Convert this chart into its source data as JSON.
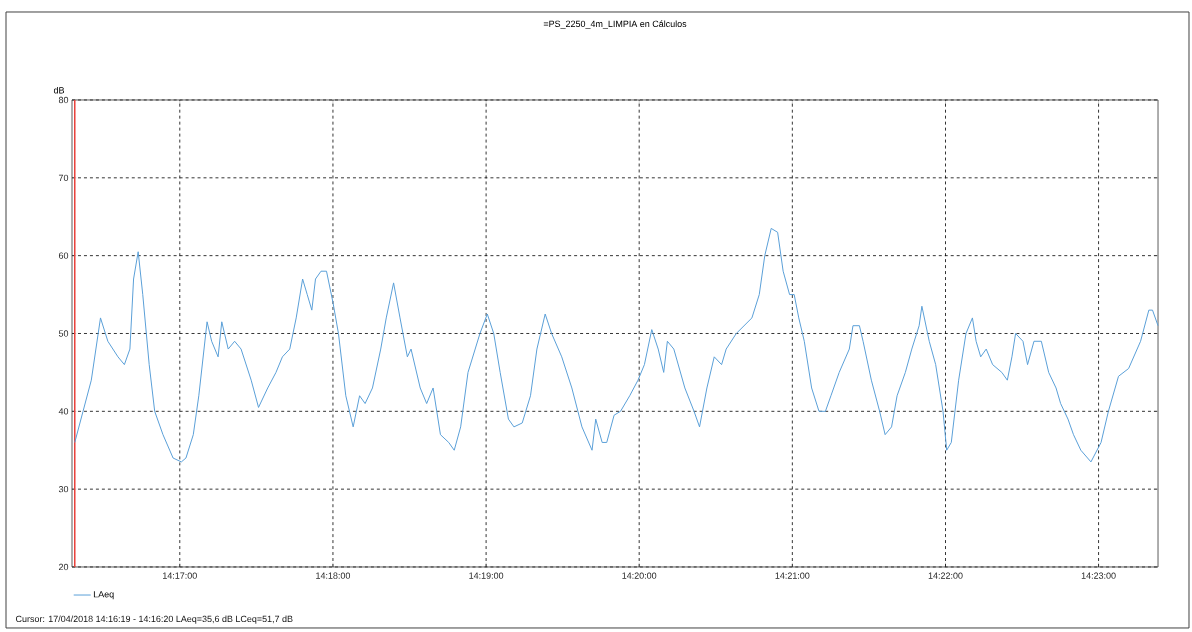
{
  "chart_data": {
    "type": "line",
    "title": "=PS_2250_4m_LIMPIA en Cálculos",
    "ylabel": "dB",
    "xlim": [
      14.2716,
      14.3898
    ],
    "ylim": [
      20,
      80
    ],
    "xticks": [
      {
        "value": 14.28333,
        "label": "14:17:00"
      },
      {
        "value": 14.3,
        "label": "14:18:00"
      },
      {
        "value": 14.31667,
        "label": "14:19:00"
      },
      {
        "value": 14.33333,
        "label": "14:20:00"
      },
      {
        "value": 14.35,
        "label": "14:21:00"
      },
      {
        "value": 14.36667,
        "label": "14:22:00"
      },
      {
        "value": 14.38333,
        "label": "14:23:00"
      }
    ],
    "yticks": [
      20,
      30,
      40,
      50,
      60,
      70,
      80
    ],
    "grid": true,
    "legend": "bottom left",
    "marker": "none",
    "line_style": "solid",
    "ref_lines": [
      {
        "axis": "x",
        "value": 14.2719,
        "color": "#e8403a"
      }
    ],
    "annotations": [
      "Cursor: 17/04/2018 14:16:19 - 14:16:20  LAeq=35,6 dB  LCeq=51,7 dB"
    ],
    "series": [
      {
        "name": "LAeq",
        "color": "#5aa0d8",
        "x": [
          14.2719,
          14.2728,
          14.2737,
          14.2747,
          14.2755,
          14.2766,
          14.2773,
          14.2779,
          14.2783,
          14.2788,
          14.2793,
          14.28,
          14.2806,
          14.2815,
          14.2826,
          14.2835,
          14.284,
          14.2848,
          14.2854,
          14.2863,
          14.2868,
          14.2875,
          14.2879,
          14.2886,
          14.2893,
          14.29,
          14.2911,
          14.2919,
          14.2929,
          14.2938,
          14.2945,
          14.2953,
          14.296,
          14.2967,
          14.2972,
          14.2977,
          14.2981,
          14.2987,
          14.2993,
          14.3,
          14.3006,
          14.3014,
          14.3022,
          14.3029,
          14.3035,
          14.3043,
          14.3052,
          14.3058,
          14.3066,
          14.3073,
          14.3081,
          14.3085,
          14.3095,
          14.3102,
          14.3109,
          14.3117,
          14.3126,
          14.3132,
          14.3139,
          14.3147,
          14.316,
          14.3168,
          14.3175,
          14.3182,
          14.3191,
          14.3197,
          14.3206,
          14.3215,
          14.3222,
          14.3231,
          14.3238,
          14.3249,
          14.326,
          14.3271,
          14.3282,
          14.3286,
          14.3293,
          14.3298,
          14.3306,
          14.3313,
          14.3323,
          14.3332,
          14.3339,
          14.3347,
          14.3354,
          14.336,
          14.3364,
          14.3371,
          14.3383,
          14.3393,
          14.3399,
          14.3407,
          14.3415,
          14.3423,
          14.3428,
          14.3439,
          14.3456,
          14.3464,
          14.347,
          14.3477,
          14.3484,
          14.349,
          14.3497,
          14.3502,
          14.3507,
          14.3513,
          14.3521,
          14.3529,
          14.3536,
          14.3542,
          14.3551,
          14.3562,
          14.3566,
          14.3573,
          14.3577,
          14.3586,
          14.3595,
          14.3601,
          14.3608,
          14.3614,
          14.3623,
          14.363,
          14.3638,
          14.3641,
          14.3649,
          14.3656,
          14.3664,
          14.3668,
          14.3673,
          14.3681,
          14.3689,
          14.3696,
          14.37,
          14.3705,
          14.3711,
          14.3718,
          14.3728,
          14.3734,
          14.3739,
          14.3743,
          14.3751,
          14.3756,
          14.3763,
          14.3771,
          14.3779,
          14.3787,
          14.3792,
          14.38,
          14.3806,
          14.3814,
          14.3825,
          14.3836,
          14.3844,
          14.3855,
          14.3866,
          14.3879,
          14.3888,
          14.3892,
          14.3898
        ],
        "values": [
          36,
          40,
          44,
          52,
          49,
          47,
          46,
          48,
          57,
          60.5,
          55,
          46,
          40,
          37,
          34,
          33.5,
          34,
          37,
          42,
          51.5,
          49,
          47,
          51.5,
          48,
          49,
          48,
          44,
          40.5,
          43,
          45,
          47,
          48,
          52,
          57,
          55,
          53,
          57,
          58,
          58,
          54,
          50,
          42,
          38,
          42,
          41,
          43,
          48,
          52,
          56.5,
          52,
          47,
          48,
          43,
          41,
          43,
          37,
          36,
          35,
          38,
          45,
          50,
          52.5,
          50,
          45,
          39,
          38,
          38.5,
          42,
          48,
          52.5,
          50,
          47,
          43,
          38,
          35,
          39,
          36,
          36,
          39.5,
          40,
          42,
          44,
          46,
          50.5,
          48,
          45,
          49,
          48,
          43,
          40,
          38,
          43,
          47,
          46,
          48,
          50,
          52,
          55,
          60,
          63.5,
          63,
          58,
          55,
          55,
          52,
          49,
          43,
          40,
          40,
          42,
          45,
          48,
          51,
          51,
          49,
          44,
          40,
          37,
          38,
          42,
          45,
          48,
          51,
          53.5,
          49,
          46,
          40,
          35,
          36,
          44,
          50,
          52,
          49,
          47,
          48,
          46,
          45,
          44,
          47,
          50,
          49,
          46,
          49,
          49,
          45,
          43,
          41,
          39,
          37,
          35,
          33.5,
          36,
          40,
          44.5,
          45.5,
          49,
          53,
          53,
          51
        ]
      }
    ]
  }
}
